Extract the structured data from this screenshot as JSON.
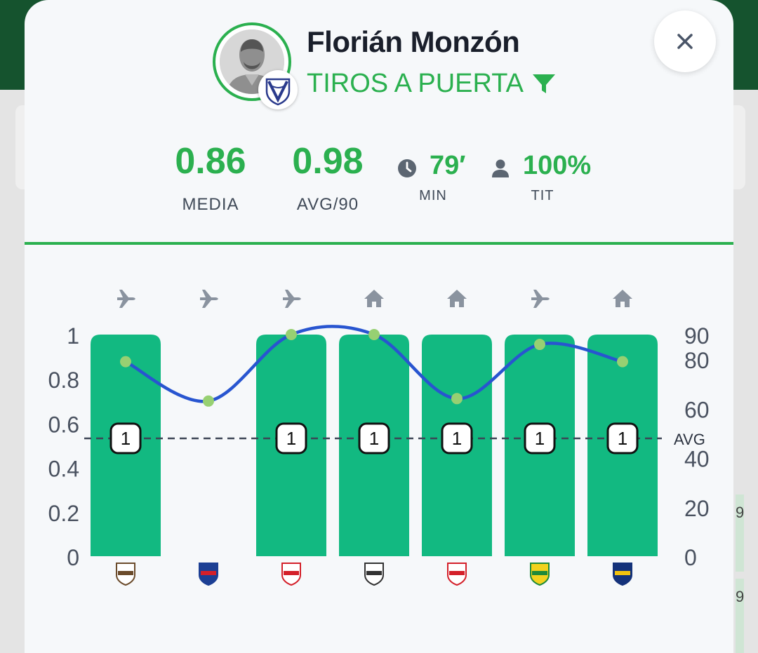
{
  "header": {
    "player_name": "Florián Monzón",
    "stat_title": "TIROS A PUERTA"
  },
  "metrics": {
    "media": {
      "value": "0.86",
      "label": "MEDIA"
    },
    "avg90": {
      "value": "0.98",
      "label": "AVG/90"
    },
    "minutes": {
      "value": "79′",
      "label": "MIN"
    },
    "starter": {
      "value": "100%",
      "label": "TIT"
    }
  },
  "colors": {
    "accent": "#2bb04f",
    "bar": "#12b981",
    "line": "#2855d0",
    "point": "#97d072",
    "dark_bar": "#15532e"
  },
  "background": {
    "partial_numbers": [
      "9",
      "9"
    ]
  },
  "chart_data": {
    "type": "bar",
    "left_axis": {
      "ticks": [
        "0",
        "0.2",
        "0.4",
        "0.6",
        "0.8",
        "1"
      ],
      "ylim": [
        0,
        1
      ]
    },
    "right_axis": {
      "ticks": [
        "0",
        "20",
        "40",
        "60",
        "80",
        "90"
      ],
      "ylim": [
        0,
        90
      ]
    },
    "avg_label": "AVG",
    "avg_value": 0.5,
    "venues": [
      "away",
      "away",
      "away",
      "home",
      "home",
      "away",
      "home"
    ],
    "venue_icons": [
      "plane-icon",
      "plane-icon",
      "plane-icon",
      "home-icon",
      "home-icon",
      "plane-icon",
      "home-icon"
    ],
    "opponent_icons": [
      "platense-crest-icon",
      "tigre-crest-icon",
      "estudiantes-crest-icon",
      "deportivo-riestra-crest-icon",
      "river-plate-crest-icon",
      "defensa-y-justicia-crest-icon",
      "boca-juniors-crest-icon"
    ],
    "bar_values": [
      1,
      0,
      1,
      1,
      1,
      1,
      1
    ],
    "bar_labels": [
      "1",
      "",
      "1",
      "1",
      "1",
      "1",
      "1"
    ],
    "minutes_series": [
      79,
      63,
      90,
      90,
      64,
      86,
      79
    ]
  }
}
